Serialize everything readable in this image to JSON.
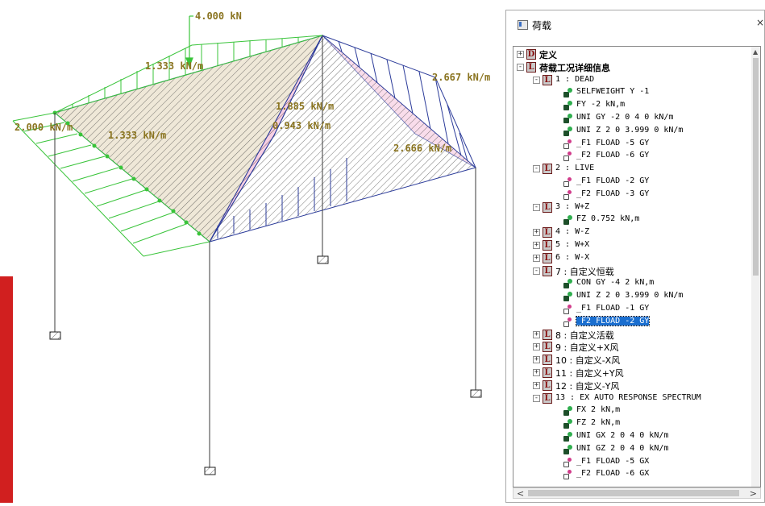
{
  "colors": {
    "load_green": "#39c43a",
    "member_blue": "#2c3c9a",
    "label_gold": "#8a7420",
    "surface_pink": "#f4c8dc",
    "accent_red": "#d11f1f",
    "selection_blue": "#1a6ecf"
  },
  "viewport": {
    "load_labels": {
      "point_load": "4.000 kN",
      "left_top": "1.333 kN/m",
      "left_end": "2.000 kN/m",
      "left_mid": "1.333 kN/m",
      "right_top": "2.667 kN/m",
      "center_a": "1.885 kN/m",
      "center_b": "0.943 kN/m",
      "right_low": "2.666 kN/m"
    }
  },
  "panel": {
    "title": "荷载",
    "close_glyph": "×",
    "tree": [
      {
        "level": 0,
        "expander": "+",
        "badge": "D",
        "text": "定义",
        "kind": "bold"
      },
      {
        "level": 0,
        "expander": "-",
        "badge": "L",
        "text": "荷载工况详细信息",
        "kind": "bold"
      },
      {
        "level": 1,
        "expander": "-",
        "badge": "L",
        "text": "1 : DEAD",
        "kind": "mono"
      },
      {
        "level": 2,
        "icon": "member",
        "text": "SELFWEIGHT Y -1"
      },
      {
        "level": 2,
        "icon": "member",
        "text": "FY -2 kN,m"
      },
      {
        "level": 2,
        "icon": "member",
        "text": "UNI GY -2 0 4 0 kN/m"
      },
      {
        "level": 2,
        "icon": "member",
        "text": "UNI Z 2 0 3.999 0 kN/m"
      },
      {
        "level": 2,
        "icon": "floor",
        "text": "_F1 FLOAD -5 GY"
      },
      {
        "level": 2,
        "icon": "floor",
        "text": "_F2 FLOAD -6 GY"
      },
      {
        "level": 1,
        "expander": "-",
        "badge": "L",
        "text": "2 : LIVE",
        "kind": "mono"
      },
      {
        "level": 2,
        "icon": "floor",
        "text": "_F1 FLOAD -2 GY"
      },
      {
        "level": 2,
        "icon": "floor",
        "text": "_F2 FLOAD -3 GY"
      },
      {
        "level": 1,
        "expander": "-",
        "badge": "L",
        "text": "3 : W+Z",
        "kind": "mono"
      },
      {
        "level": 2,
        "icon": "member",
        "text": "FZ 0.752 kN,m"
      },
      {
        "level": 1,
        "expander": "+",
        "badge": "L",
        "text": "4 : W-Z",
        "kind": "mono"
      },
      {
        "level": 1,
        "expander": "+",
        "badge": "L",
        "text": "5 : W+X",
        "kind": "mono"
      },
      {
        "level": 1,
        "expander": "+",
        "badge": "L",
        "text": "6 : W-X",
        "kind": "mono"
      },
      {
        "level": 1,
        "expander": "-",
        "badge": "L",
        "text": "7 : 自定义恒载",
        "kind": "cn"
      },
      {
        "level": 2,
        "icon": "member",
        "text": "CON GY -4 2 kN,m"
      },
      {
        "level": 2,
        "icon": "member",
        "text": "UNI Z 2 0 3.999 0 kN/m"
      },
      {
        "level": 2,
        "icon": "floor",
        "text": "_F1 FLOAD -1 GY"
      },
      {
        "level": 2,
        "icon": "floor",
        "text": "_F2 FLOAD -2 GY",
        "selected": true
      },
      {
        "level": 1,
        "expander": "+",
        "badge": "L",
        "text": "8 : 自定义活载",
        "kind": "cn"
      },
      {
        "level": 1,
        "expander": "+",
        "badge": "L",
        "text": "9 : 自定义+X风",
        "kind": "cn"
      },
      {
        "level": 1,
        "expander": "+",
        "badge": "L",
        "text": "10 : 自定义-X风",
        "kind": "cn"
      },
      {
        "level": 1,
        "expander": "+",
        "badge": "L",
        "text": "11 : 自定义+Y风",
        "kind": "cn"
      },
      {
        "level": 1,
        "expander": "+",
        "badge": "L",
        "text": "12 : 自定义-Y风",
        "kind": "cn"
      },
      {
        "level": 1,
        "expander": "-",
        "badge": "L",
        "text": "13 : EX AUTO RESPONSE SPECTRUM",
        "kind": "mono"
      },
      {
        "level": 2,
        "icon": "member",
        "text": "FX 2 kN,m"
      },
      {
        "level": 2,
        "icon": "member",
        "text": "FZ 2 kN,m"
      },
      {
        "level": 2,
        "icon": "member",
        "text": "UNI GX 2 0 4 0 kN/m"
      },
      {
        "level": 2,
        "icon": "member",
        "text": "UNI GZ 2 0 4 0 kN/m"
      },
      {
        "level": 2,
        "icon": "floor",
        "text": "_F1 FLOAD -5 GX"
      },
      {
        "level": 2,
        "icon": "floor",
        "text": "_F2 FLOAD -6 GX"
      }
    ],
    "scroll_left": "<",
    "scroll_right": ">"
  }
}
